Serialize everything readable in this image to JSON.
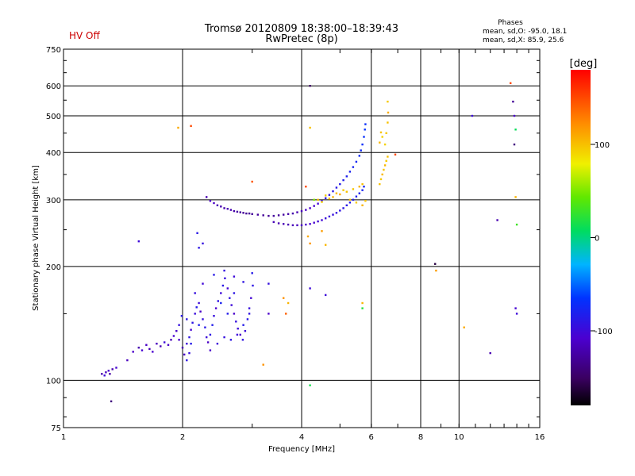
{
  "status": {
    "hv_label": "HV Off",
    "hv_color": "#cc0000"
  },
  "header": {
    "title_line1": "Tromsø 20120809 18:38:00–18:39:43",
    "title_line2": "RwPretec (8p)"
  },
  "stats": {
    "heading": "Phases",
    "line_o": "mean, sd,O: -95.0, 18.1",
    "line_x": "mean, sd,X:  85.9, 25.6"
  },
  "colorbar": {
    "unit_label": "[deg]",
    "ticks": [
      {
        "label": "100",
        "value": 100
      },
      {
        "label": "0",
        "value": 0
      },
      {
        "label": "-100",
        "value": -100
      }
    ],
    "range": [
      -180,
      180
    ]
  },
  "chart_data": {
    "type": "scatter",
    "xlabel": "Frequency [MHz]",
    "ylabel": "Stationary phase Virtual Height [km]",
    "xscale": "log",
    "yscale": "log",
    "xlim": [
      1,
      16
    ],
    "ylim": [
      75,
      750
    ],
    "x_ticks": [
      {
        "label": "1",
        "value": 1
      },
      {
        "label": "2",
        "value": 2
      },
      {
        "label": "4",
        "value": 4
      },
      {
        "label": "6",
        "value": 6
      },
      {
        "label": "8",
        "value": 8
      },
      {
        "label": "10",
        "value": 10
      },
      {
        "label": "16",
        "value": 16
      }
    ],
    "y_ticks": [
      {
        "label": "75",
        "value": 75
      },
      {
        "label": "100",
        "value": 100
      },
      {
        "label": "200",
        "value": 200
      },
      {
        "label": "300",
        "value": 300
      },
      {
        "label": "400",
        "value": 400
      },
      {
        "label": "500",
        "value": 500
      },
      {
        "label": "600",
        "value": 600
      },
      {
        "label": "750",
        "value": 750
      }
    ],
    "grid": true,
    "points": [
      [
        1.25,
        104,
        -120
      ],
      [
        1.28,
        105,
        -115
      ],
      [
        1.3,
        106,
        -110
      ],
      [
        1.33,
        107,
        -120
      ],
      [
        1.36,
        108,
        -105
      ],
      [
        1.27,
        103,
        -100
      ],
      [
        1.31,
        104,
        -125
      ],
      [
        1.32,
        88,
        -140
      ],
      [
        1.45,
        113,
        -115
      ],
      [
        1.5,
        119,
        -110
      ],
      [
        1.55,
        122,
        -120
      ],
      [
        1.58,
        120,
        -105
      ],
      [
        1.62,
        124,
        -112
      ],
      [
        1.65,
        121,
        -118
      ],
      [
        1.68,
        119,
        -108
      ],
      [
        1.72,
        125,
        -115
      ],
      [
        1.76,
        123,
        -120
      ],
      [
        1.8,
        126,
        -100
      ],
      [
        1.84,
        124,
        -112
      ],
      [
        1.87,
        128,
        -118
      ],
      [
        1.9,
        131,
        -106
      ],
      [
        1.93,
        135,
        -112
      ],
      [
        1.96,
        140,
        -95
      ],
      [
        1.99,
        148,
        -88
      ],
      [
        1.96,
        128,
        -110
      ],
      [
        2.0,
        122,
        -120
      ],
      [
        2.02,
        117,
        -112
      ],
      [
        2.05,
        125,
        -100
      ],
      [
        2.08,
        130,
        -92
      ],
      [
        2.1,
        136,
        -105
      ],
      [
        2.12,
        142,
        -90
      ],
      [
        2.15,
        150,
        -98
      ],
      [
        2.17,
        156,
        -86
      ],
      [
        2.2,
        160,
        -100
      ],
      [
        2.22,
        152,
        -112
      ],
      [
        2.25,
        145,
        -95
      ],
      [
        2.28,
        138,
        -88
      ],
      [
        2.3,
        130,
        -100
      ],
      [
        2.32,
        126,
        -112
      ],
      [
        2.35,
        132,
        -90
      ],
      [
        2.38,
        140,
        -84
      ],
      [
        2.4,
        148,
        -96
      ],
      [
        2.43,
        155,
        -108
      ],
      [
        2.46,
        162,
        -92
      ],
      [
        2.5,
        170,
        -100
      ],
      [
        2.53,
        178,
        -88
      ],
      [
        2.56,
        186,
        -96
      ],
      [
        2.6,
        175,
        -104
      ],
      [
        2.63,
        165,
        -92
      ],
      [
        2.66,
        158,
        -100
      ],
      [
        2.7,
        150,
        -110
      ],
      [
        2.73,
        143,
        -95
      ],
      [
        2.76,
        137,
        -100
      ],
      [
        2.8,
        132,
        -108
      ],
      [
        2.84,
        128,
        -92
      ],
      [
        2.88,
        135,
        -100
      ],
      [
        2.92,
        145,
        -88
      ],
      [
        2.95,
        155,
        -96
      ],
      [
        2.98,
        165,
        -104
      ],
      [
        3.01,
        178,
        -90
      ],
      [
        2.5,
        160,
        -80
      ],
      [
        2.6,
        150,
        -85
      ],
      [
        2.7,
        170,
        -90
      ],
      [
        2.2,
        140,
        -82
      ],
      [
        2.1,
        125,
        -86
      ],
      [
        2.35,
        120,
        -110
      ],
      [
        2.45,
        125,
        -100
      ],
      [
        2.55,
        130,
        -95
      ],
      [
        2.65,
        128,
        -90
      ],
      [
        2.75,
        132,
        -100
      ],
      [
        2.85,
        140,
        -85
      ],
      [
        2.95,
        150,
        -92
      ],
      [
        2.05,
        145,
        -90
      ],
      [
        2.15,
        170,
        -96
      ],
      [
        2.25,
        180,
        -102
      ],
      [
        2.4,
        190,
        -88
      ],
      [
        2.55,
        195,
        -94
      ],
      [
        2.7,
        188,
        -100
      ],
      [
        2.85,
        182,
        -92
      ],
      [
        3.0,
        192,
        -86
      ],
      [
        2.2,
        224,
        -90
      ],
      [
        2.25,
        230,
        -95
      ],
      [
        2.18,
        245,
        -88
      ],
      [
        1.55,
        233,
        -100
      ],
      [
        2.05,
        113,
        -90
      ],
      [
        2.08,
        118,
        -96
      ],
      [
        2.3,
        305,
        -120
      ],
      [
        2.35,
        298,
        -115
      ],
      [
        2.4,
        294,
        -112
      ],
      [
        2.45,
        290,
        -118
      ],
      [
        2.5,
        288,
        -120
      ],
      [
        2.55,
        285,
        -122
      ],
      [
        2.6,
        284,
        -118
      ],
      [
        2.65,
        282,
        -120
      ],
      [
        2.7,
        280,
        -124
      ],
      [
        2.75,
        279,
        -126
      ],
      [
        2.8,
        278,
        -128
      ],
      [
        2.85,
        277,
        -130
      ],
      [
        2.9,
        276,
        -130
      ],
      [
        2.95,
        276,
        -132
      ],
      [
        3.0,
        275,
        -130
      ],
      [
        3.1,
        274,
        -128
      ],
      [
        3.2,
        273,
        -130
      ],
      [
        3.3,
        272,
        -132
      ],
      [
        3.4,
        272,
        -128
      ],
      [
        3.5,
        273,
        -130
      ],
      [
        3.6,
        274,
        -126
      ],
      [
        3.7,
        275,
        -124
      ],
      [
        3.8,
        276,
        -122
      ],
      [
        3.9,
        278,
        -120
      ],
      [
        4.0,
        280,
        -116
      ],
      [
        4.1,
        282,
        -112
      ],
      [
        4.2,
        285,
        -110
      ],
      [
        4.3,
        289,
        -106
      ],
      [
        4.4,
        293,
        -102
      ],
      [
        4.5,
        298,
        -98
      ],
      [
        4.6,
        303,
        -95
      ],
      [
        4.7,
        309,
        -92
      ],
      [
        4.8,
        316,
        -90
      ],
      [
        4.9,
        323,
        -88
      ],
      [
        5.0,
        330,
        -86
      ],
      [
        5.1,
        338,
        -84
      ],
      [
        5.2,
        346,
        -82
      ],
      [
        5.3,
        356,
        -80
      ],
      [
        5.4,
        366,
        -78
      ],
      [
        5.5,
        378,
        -76
      ],
      [
        5.6,
        392,
        -74
      ],
      [
        5.65,
        405,
        -72
      ],
      [
        5.7,
        420,
        -70
      ],
      [
        5.75,
        440,
        -68
      ],
      [
        5.78,
        460,
        -66
      ],
      [
        5.8,
        475,
        -70
      ],
      [
        3.4,
        262,
        -118
      ],
      [
        3.5,
        260,
        -120
      ],
      [
        3.6,
        259,
        -118
      ],
      [
        3.7,
        258,
        -120
      ],
      [
        3.8,
        257,
        -116
      ],
      [
        3.9,
        257,
        -114
      ],
      [
        4.0,
        257,
        -112
      ],
      [
        4.1,
        258,
        -110
      ],
      [
        4.2,
        259,
        -108
      ],
      [
        4.3,
        261,
        -106
      ],
      [
        4.4,
        263,
        -104
      ],
      [
        4.5,
        265,
        -102
      ],
      [
        4.6,
        268,
        -100
      ],
      [
        4.7,
        271,
        -98
      ],
      [
        4.8,
        274,
        -96
      ],
      [
        4.9,
        277,
        -94
      ],
      [
        5.0,
        281,
        -92
      ],
      [
        5.1,
        285,
        -90
      ],
      [
        5.2,
        290,
        -88
      ],
      [
        5.3,
        295,
        -86
      ],
      [
        5.4,
        300,
        -84
      ],
      [
        5.5,
        306,
        -82
      ],
      [
        5.6,
        312,
        -80
      ],
      [
        5.7,
        318,
        -78
      ],
      [
        5.75,
        325,
        -76
      ],
      [
        4.4,
        300,
        100
      ],
      [
        4.6,
        308,
        95
      ],
      [
        4.8,
        305,
        105
      ],
      [
        5.0,
        310,
        110
      ],
      [
        5.2,
        315,
        100
      ],
      [
        5.4,
        320,
        98
      ],
      [
        5.6,
        325,
        105
      ],
      [
        5.7,
        330,
        100
      ],
      [
        4.5,
        296,
        92
      ],
      [
        4.7,
        302,
        98
      ],
      [
        4.9,
        312,
        104
      ],
      [
        5.1,
        318,
        96
      ],
      [
        5.3,
        300,
        102
      ],
      [
        5.5,
        295,
        96
      ],
      [
        5.7,
        290,
        106
      ],
      [
        5.8,
        298,
        100
      ],
      [
        6.3,
        330,
        100
      ],
      [
        6.35,
        340,
        96
      ],
      [
        6.4,
        350,
        104
      ],
      [
        6.45,
        360,
        98
      ],
      [
        6.5,
        370,
        104
      ],
      [
        6.55,
        380,
        96
      ],
      [
        6.6,
        390,
        100
      ],
      [
        6.5,
        420,
        92
      ],
      [
        6.55,
        450,
        96
      ],
      [
        6.6,
        480,
        100
      ],
      [
        6.62,
        510,
        108
      ],
      [
        6.6,
        545,
        96
      ],
      [
        6.3,
        425,
        104
      ],
      [
        6.35,
        452,
        98
      ],
      [
        6.4,
        440,
        92
      ],
      [
        6.9,
        395,
        150
      ],
      [
        4.2,
        600,
        -150
      ],
      [
        4.2,
        465,
        100
      ],
      [
        4.1,
        325,
        150
      ],
      [
        4.3,
        300,
        50
      ],
      [
        4.15,
        240,
        110
      ],
      [
        4.2,
        230,
        120
      ],
      [
        4.5,
        248,
        115
      ],
      [
        4.6,
        228,
        104
      ],
      [
        4.2,
        175,
        -100
      ],
      [
        4.6,
        168,
        -100
      ],
      [
        5.7,
        160,
        105
      ],
      [
        5.7,
        155,
        20
      ],
      [
        3.6,
        165,
        120
      ],
      [
        3.7,
        160,
        105
      ],
      [
        3.3,
        150,
        -110
      ],
      [
        3.3,
        180,
        -95
      ],
      [
        3.65,
        150,
        140
      ],
      [
        3.2,
        110,
        120
      ],
      [
        4.2,
        97,
        15
      ],
      [
        1.95,
        465,
        110
      ],
      [
        2.1,
        470,
        150
      ],
      [
        3.0,
        335,
        145
      ],
      [
        8.7,
        203,
        -160
      ],
      [
        8.75,
        195,
        115
      ],
      [
        10.8,
        500,
        -100
      ],
      [
        13.5,
        610,
        150
      ],
      [
        13.7,
        545,
        -130
      ],
      [
        13.8,
        500,
        -110
      ],
      [
        13.9,
        460,
        10
      ],
      [
        13.8,
        420,
        -140
      ],
      [
        13.9,
        305,
        105
      ],
      [
        14.0,
        258,
        30
      ],
      [
        13.9,
        155,
        -105
      ],
      [
        14.0,
        150,
        -100
      ],
      [
        12.5,
        265,
        -120
      ],
      [
        12.0,
        118,
        -120
      ],
      [
        10.3,
        138,
        110
      ]
    ]
  }
}
